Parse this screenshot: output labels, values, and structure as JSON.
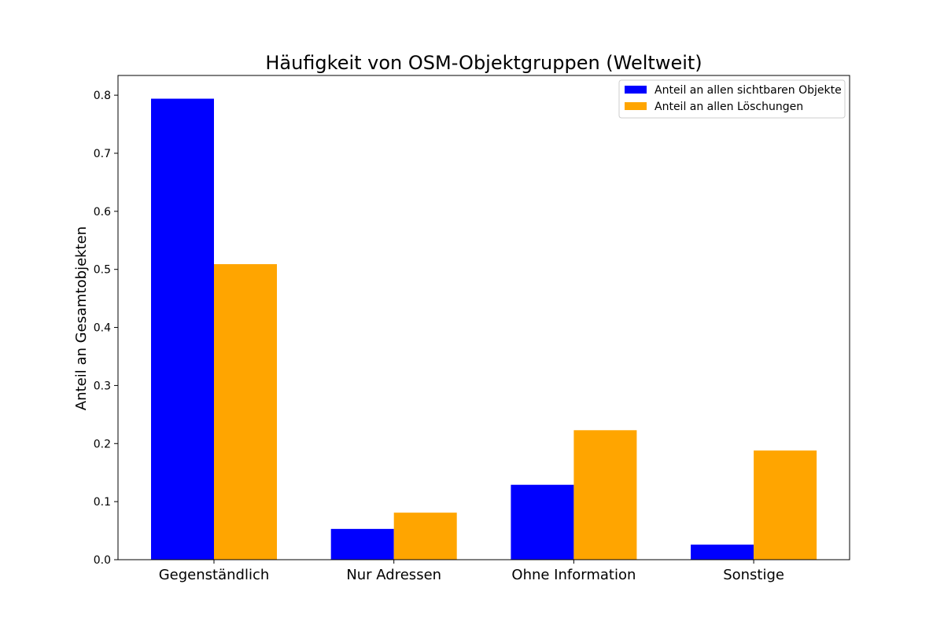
{
  "chart_data": {
    "type": "bar",
    "title": "Häufigkeit von OSM-Objektgruppen (Weltweit)",
    "xlabel": "",
    "ylabel": "Anteil an Gesamtobjekten",
    "categories": [
      "Gegenständlich",
      "Nur Adressen",
      "Ohne Information",
      "Sonstige"
    ],
    "series": [
      {
        "name": "Anteil an allen sichtbaren Objekte",
        "color": "#0000ff",
        "values": [
          0.794,
          0.053,
          0.129,
          0.026
        ]
      },
      {
        "name": "Anteil an allen Löschungen",
        "color": "#ffa500",
        "values": [
          0.509,
          0.081,
          0.223,
          0.188
        ]
      }
    ],
    "ylim": [
      0,
      0.834
    ],
    "yticks": [
      "0.0",
      "0.1",
      "0.2",
      "0.3",
      "0.4",
      "0.5",
      "0.6",
      "0.7",
      "0.8"
    ],
    "grid": false,
    "legend_position": "top-right"
  }
}
